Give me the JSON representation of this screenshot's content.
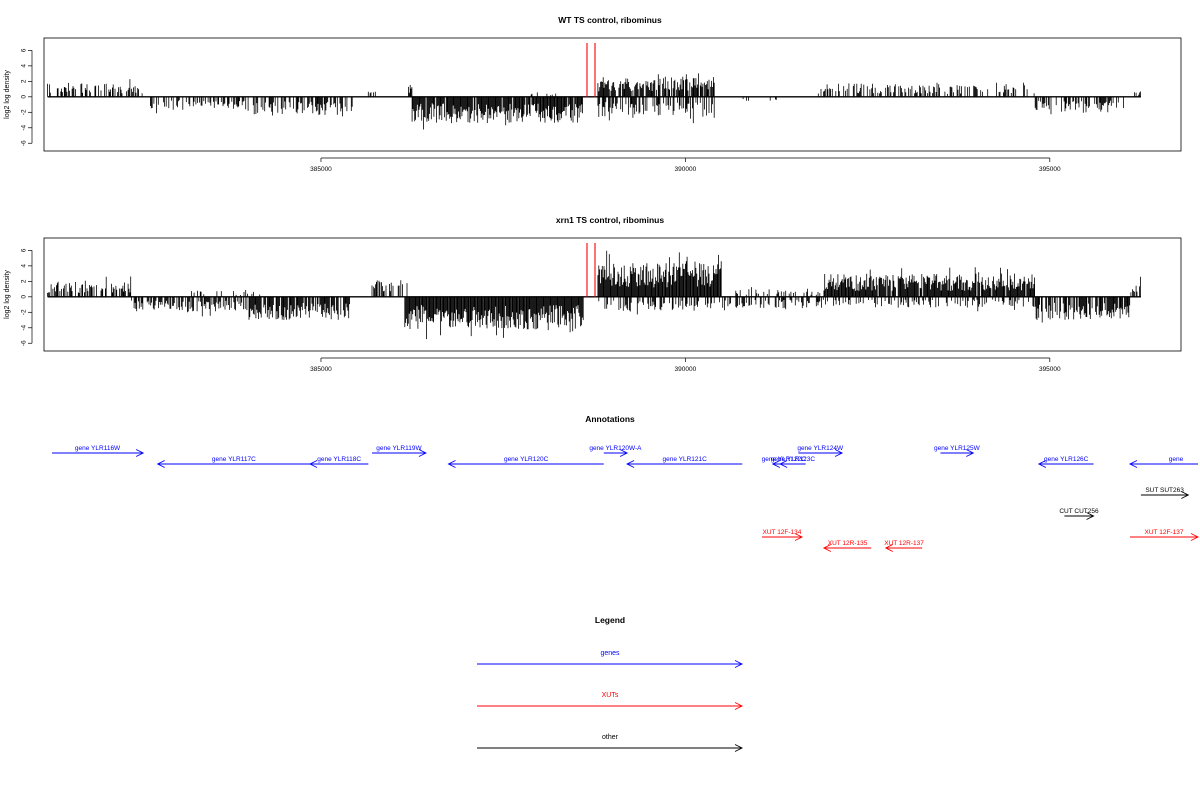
{
  "chart_data": [
    {
      "type": "bar",
      "title": "WT TS control, ribominus",
      "ylabel": "log2 log density",
      "xlim": [
        381200,
        396800
      ],
      "ylim": [
        -7,
        7.6
      ],
      "x_ticks": [
        385000,
        390000,
        395000
      ],
      "x_tick_labels": [
        "385000",
        "390000",
        "395000"
      ],
      "y_ticks": [
        6,
        4,
        2,
        0,
        -2,
        -4,
        -6
      ],
      "y_tick_labels": [
        "6",
        "4",
        "2",
        "0",
        "-2",
        "-4",
        "-6"
      ],
      "marker_lines_x": [
        388650,
        388760
      ],
      "marker_color": "#ff0000",
      "bar_color": "#000000",
      "seed": 7,
      "segments": [
        {
          "x0": 381250,
          "x1": 382550,
          "sign": 1,
          "amp": 1.8,
          "density": 0.45
        },
        {
          "x0": 382600,
          "x1": 384000,
          "sign": -1,
          "amp": 1.6,
          "density": 0.4
        },
        {
          "x0": 384000,
          "x1": 385450,
          "sign": -1,
          "amp": 2.4,
          "density": 0.55
        },
        {
          "x0": 385650,
          "x1": 385750,
          "sign": 1,
          "amp": 0.8,
          "density": 0.3
        },
        {
          "x0": 386200,
          "x1": 386250,
          "sign": 1,
          "amp": 1.8,
          "density": 1.0
        },
        {
          "x0": 386250,
          "x1": 388600,
          "sign": -1,
          "amp": 3.4,
          "density": 0.95
        },
        {
          "x0": 387800,
          "x1": 388300,
          "sign": 1,
          "amp": 0.6,
          "density": 0.2
        },
        {
          "x0": 388800,
          "x1": 390400,
          "sign": 1,
          "amp": 2.6,
          "density": 0.8
        },
        {
          "x0": 388800,
          "x1": 390400,
          "sign": -1,
          "amp": 2.6,
          "density": 0.55
        },
        {
          "x0": 390600,
          "x1": 391300,
          "sign": -1,
          "amp": 0.6,
          "density": 0.15
        },
        {
          "x0": 391800,
          "x1": 393200,
          "sign": 1,
          "amp": 1.7,
          "density": 0.45
        },
        {
          "x0": 393200,
          "x1": 394800,
          "sign": 1,
          "amp": 1.5,
          "density": 0.4
        },
        {
          "x0": 394800,
          "x1": 396100,
          "sign": -1,
          "amp": 2.0,
          "density": 0.5
        },
        {
          "x0": 396100,
          "x1": 396250,
          "sign": 1,
          "amp": 0.8,
          "density": 0.3
        }
      ]
    },
    {
      "type": "bar",
      "title": "xrn1 TS control, ribominus",
      "ylabel": "log2 log density",
      "xlim": [
        381200,
        396800
      ],
      "ylim": [
        -7,
        7.6
      ],
      "x_ticks": [
        385000,
        390000,
        395000
      ],
      "x_tick_labels": [
        "385000",
        "390000",
        "395000"
      ],
      "y_ticks": [
        6,
        4,
        2,
        0,
        -2,
        -4,
        -6
      ],
      "y_tick_labels": [
        "6",
        "4",
        "2",
        "0",
        "-2",
        "-4",
        "-6"
      ],
      "marker_lines_x": [
        388650,
        388760
      ],
      "marker_color": "#ff0000",
      "bar_color": "#000000",
      "seed": 19,
      "segments": [
        {
          "x0": 381250,
          "x1": 382400,
          "sign": 1,
          "amp": 2.0,
          "density": 0.6
        },
        {
          "x0": 382400,
          "x1": 384000,
          "sign": -1,
          "amp": 1.9,
          "density": 0.6
        },
        {
          "x0": 383200,
          "x1": 384200,
          "sign": 1,
          "amp": 0.9,
          "density": 0.2
        },
        {
          "x0": 384000,
          "x1": 385400,
          "sign": -1,
          "amp": 3.0,
          "density": 0.8
        },
        {
          "x0": 385700,
          "x1": 386200,
          "sign": 1,
          "amp": 2.2,
          "density": 0.5
        },
        {
          "x0": 386150,
          "x1": 388600,
          "sign": -1,
          "amp": 4.2,
          "density": 1.0
        },
        {
          "x0": 388800,
          "x1": 390500,
          "sign": 1,
          "amp": 4.6,
          "density": 1.0
        },
        {
          "x0": 388800,
          "x1": 390500,
          "sign": -1,
          "amp": 1.8,
          "density": 0.5
        },
        {
          "x0": 390500,
          "x1": 391900,
          "sign": -1,
          "amp": 1.5,
          "density": 0.5
        },
        {
          "x0": 390500,
          "x1": 391900,
          "sign": 1,
          "amp": 1.0,
          "density": 0.3
        },
        {
          "x0": 391900,
          "x1": 394800,
          "sign": 1,
          "amp": 3.0,
          "density": 0.95
        },
        {
          "x0": 391900,
          "x1": 394800,
          "sign": -1,
          "amp": 1.4,
          "density": 0.35
        },
        {
          "x0": 394800,
          "x1": 396100,
          "sign": -1,
          "amp": 3.0,
          "density": 0.8
        },
        {
          "x0": 396100,
          "x1": 396250,
          "sign": 1,
          "amp": 2.0,
          "density": 0.6
        }
      ]
    }
  ],
  "annotations": {
    "title": "Annotations",
    "features": [
      {
        "label": "gene YLR116W",
        "x0": 381150,
        "x1": 382560,
        "dir": "right",
        "color": "#0000ff",
        "row": 1
      },
      {
        "label": "gene YLR117C",
        "x0": 382760,
        "x1": 384850,
        "dir": "left",
        "color": "#0000ff",
        "row": 2
      },
      {
        "label": "gene YLR118C",
        "x0": 384850,
        "x1": 385650,
        "dir": "left",
        "color": "#0000ff",
        "row": 2
      },
      {
        "label": "gene YLR119W",
        "x0": 385700,
        "x1": 386440,
        "dir": "right",
        "color": "#0000ff",
        "row": 1
      },
      {
        "label": "gene YLR120C",
        "x0": 386750,
        "x1": 388880,
        "dir": "left",
        "color": "#0000ff",
        "row": 2
      },
      {
        "label": "gene YLR120W-A",
        "x0": 388880,
        "x1": 389200,
        "dir": "right",
        "color": "#0000ff",
        "row": 1
      },
      {
        "label": "gene YLR121C",
        "x0": 389200,
        "x1": 390780,
        "dir": "left",
        "color": "#0000ff",
        "row": 2
      },
      {
        "label": "gene YLR122C",
        "x0": 391200,
        "x1": 391500,
        "dir": "left",
        "color": "#0000ff",
        "row": 2
      },
      {
        "label": "gene YLR123C",
        "x0": 391300,
        "x1": 391650,
        "dir": "left",
        "color": "#0000ff",
        "row": 2
      },
      {
        "label": "gene YLR124W",
        "x0": 391550,
        "x1": 392150,
        "dir": "right",
        "color": "#0000ff",
        "row": 1
      },
      {
        "label": "gene YLR125W",
        "x0": 393500,
        "x1": 393950,
        "dir": "right",
        "color": "#0000ff",
        "row": 1
      },
      {
        "label": "gene YLR126C",
        "x0": 394850,
        "x1": 395600,
        "dir": "left",
        "color": "#0000ff",
        "row": 2
      },
      {
        "label": "gene",
        "x0": 396100,
        "x1": 397200,
        "dir": "left",
        "color": "#0000ff",
        "row": 2
      },
      {
        "label": "SUT SUT263",
        "x0": 396250,
        "x1": 396900,
        "dir": "right",
        "color": "#000000",
        "row": 3
      },
      {
        "label": "CUT CUT256",
        "x0": 395200,
        "x1": 395600,
        "dir": "right",
        "color": "#000000",
        "row": 4
      },
      {
        "label": "XUT 12F-134",
        "x0": 391050,
        "x1": 391600,
        "dir": "right",
        "color": "#ff0000",
        "row": 5
      },
      {
        "label": "XUT 12R-135",
        "x0": 391900,
        "x1": 392550,
        "dir": "left",
        "color": "#ff0000",
        "row": 6
      },
      {
        "label": "XUT 12R-137",
        "x0": 392750,
        "x1": 393250,
        "dir": "left",
        "color": "#ff0000",
        "row": 6
      },
      {
        "label": "XUT 12F-137",
        "x0": 396100,
        "x1": 397200,
        "dir": "right",
        "color": "#ff0000",
        "row": 5
      }
    ]
  },
  "legend": {
    "title": "Legend",
    "items": [
      {
        "label": "genes",
        "color": "#0000ff"
      },
      {
        "label": "XUTs",
        "color": "#ff0000"
      },
      {
        "label": "other",
        "color": "#000000"
      }
    ]
  }
}
